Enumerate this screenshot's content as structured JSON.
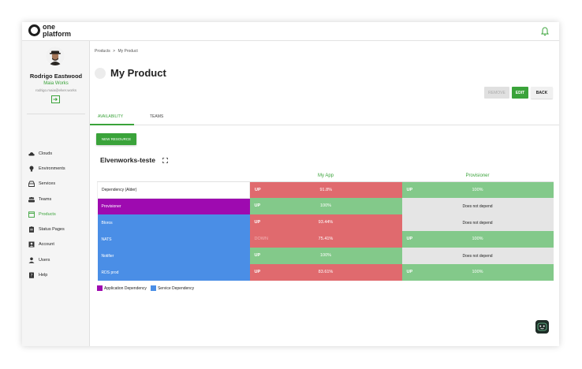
{
  "brand": {
    "line1": "one",
    "line2": "platform"
  },
  "profile": {
    "name": "Rodrigo Eastwood",
    "org": "Maia Works",
    "email": "rodrigo.maia@elver.works"
  },
  "nav": [
    {
      "label": "Clouds",
      "icon": "cloud-icon"
    },
    {
      "label": "Environments",
      "icon": "bulb-icon"
    },
    {
      "label": "Services",
      "icon": "services-icon"
    },
    {
      "label": "Teams",
      "icon": "team-icon"
    },
    {
      "label": "Products",
      "icon": "products-icon"
    },
    {
      "label": "Status Pages",
      "icon": "clipboard-icon"
    },
    {
      "label": "Account",
      "icon": "account-icon"
    },
    {
      "label": "Users",
      "icon": "user-icon"
    },
    {
      "label": "Help",
      "icon": "help-icon"
    }
  ],
  "breadcrumb": {
    "parent": "Products",
    "sep": ">",
    "current": "My Product"
  },
  "page": {
    "title": "My Product"
  },
  "actions": {
    "remove": "REMOVE",
    "edit": "EDIT",
    "back": "BACK"
  },
  "tabs": [
    {
      "label": "AVAILABILITY"
    },
    {
      "label": "TEAMS"
    }
  ],
  "new_resource": "NEW RESOURCE",
  "environment": "Elvenworks-teste",
  "matrix": {
    "columns": [
      "My App",
      "Provisioner"
    ],
    "rows": [
      {
        "name": "Dependency (Alder)",
        "kind": "none",
        "cells": [
          {
            "status": "UP",
            "value": "91.8%",
            "state": "down"
          },
          {
            "status": "UP",
            "value": "100%",
            "state": "up"
          }
        ]
      },
      {
        "name": "Provisioner",
        "kind": "app",
        "cells": [
          {
            "status": "UP",
            "value": "100%",
            "state": "up"
          },
          {
            "text": "Does not depend",
            "state": "nodep"
          }
        ]
      },
      {
        "name": "Bloros",
        "kind": "svc",
        "cells": [
          {
            "status": "UP",
            "value": "93.44%",
            "state": "down"
          },
          {
            "text": "Does not depend",
            "state": "nodep"
          }
        ]
      },
      {
        "name": "NATS",
        "kind": "svc",
        "cells": [
          {
            "status": "DOWN",
            "value": "75.41%",
            "state": "down",
            "dim": true
          },
          {
            "status": "UP",
            "value": "100%",
            "state": "up"
          }
        ]
      },
      {
        "name": "Notifier",
        "kind": "svc",
        "cells": [
          {
            "status": "UP",
            "value": "100%",
            "state": "up"
          },
          {
            "text": "Does not depend",
            "state": "nodep"
          }
        ]
      },
      {
        "name": "RDS prod",
        "kind": "svc",
        "cells": [
          {
            "status": "UP",
            "value": "83.61%",
            "state": "down"
          },
          {
            "status": "UP",
            "value": "100%",
            "state": "up"
          }
        ]
      }
    ]
  },
  "legend": [
    {
      "label": "Application Dependency",
      "color": "#9e0ab0"
    },
    {
      "label": "Service Dependency",
      "color": "#4a8ee6"
    }
  ],
  "colors": {
    "accent": "#3aa33a",
    "up": "#83c98a",
    "down": "#e06a6e",
    "none": "#e5e5e5"
  }
}
